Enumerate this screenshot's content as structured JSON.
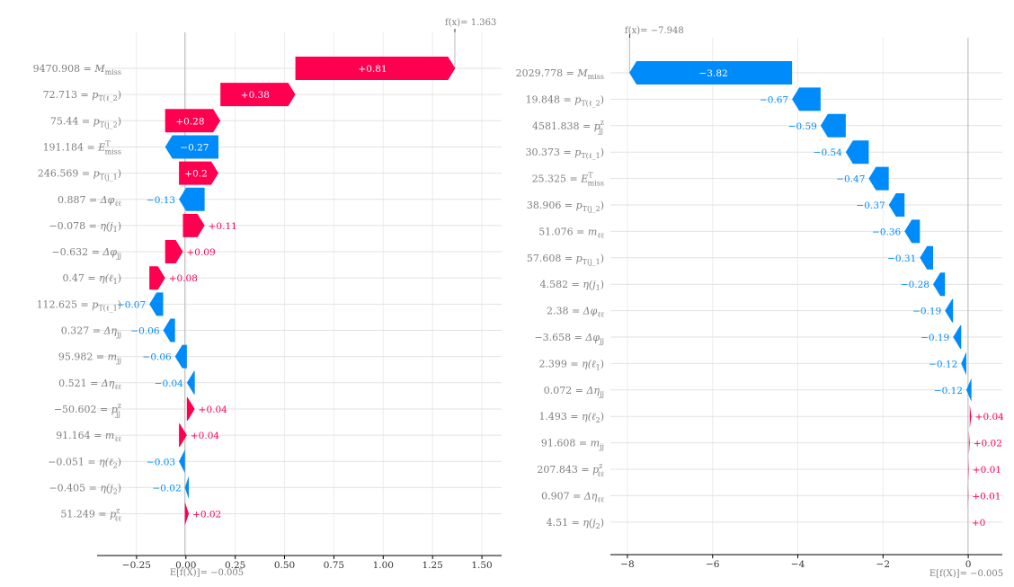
{
  "chart_data": [
    {
      "type": "waterfall",
      "base_value_label": "E[f(X)]= −0.005",
      "output_label": "f(x)= 1.363",
      "base_value": -0.005,
      "output_value": 1.363,
      "xlim": [
        -0.45,
        1.6
      ],
      "xticks": [
        -0.25,
        0.0,
        0.25,
        0.5,
        0.75,
        1.0,
        1.25,
        1.5
      ],
      "xtick_labels": [
        "−0.25",
        "0.00",
        "0.25",
        "0.50",
        "0.75",
        "1.00",
        "1.25",
        "1.50"
      ],
      "colors": {
        "positive": "#ff0051",
        "negative": "#008bfb"
      },
      "features": [
        {
          "value": "9470.908",
          "name": "M_miss",
          "contribution": 0.81,
          "label": "+0.81"
        },
        {
          "value": "72.713",
          "name": "p_T(ℓ_2)",
          "contribution": 0.38,
          "label": "+0.38"
        },
        {
          "value": "75.44",
          "name": "p_T(j_2)",
          "contribution": 0.28,
          "label": "+0.28"
        },
        {
          "value": "191.184",
          "name": "E^T_miss",
          "contribution": -0.27,
          "label": "−0.27"
        },
        {
          "value": "246.569",
          "name": "p_T(j_1)",
          "contribution": 0.2,
          "label": "+0.2"
        },
        {
          "value": "0.887",
          "name": "Δφ_ℓℓ",
          "contribution": -0.13,
          "label": "−0.13"
        },
        {
          "value": "−0.078",
          "name": "η(j_1)",
          "contribution": 0.11,
          "label": "+0.11"
        },
        {
          "value": "−0.632",
          "name": "Δφ_jj",
          "contribution": 0.09,
          "label": "+0.09"
        },
        {
          "value": "0.47",
          "name": "η(ℓ_1)",
          "contribution": 0.08,
          "label": "+0.08"
        },
        {
          "value": "112.625",
          "name": "p_T(ℓ_1)",
          "contribution": -0.07,
          "label": "−0.07"
        },
        {
          "value": "0.327",
          "name": "Δη_jj",
          "contribution": -0.06,
          "label": "−0.06"
        },
        {
          "value": "95.982",
          "name": "m_jj",
          "contribution": -0.06,
          "label": "−0.06"
        },
        {
          "value": "0.521",
          "name": "Δη_ℓℓ",
          "contribution": -0.04,
          "label": "−0.04"
        },
        {
          "value": "−50.602",
          "name": "p^z_jj",
          "contribution": 0.04,
          "label": "+0.04"
        },
        {
          "value": "91.164",
          "name": "m_ℓℓ",
          "contribution": 0.04,
          "label": "+0.04"
        },
        {
          "value": "−0.051",
          "name": "η(ℓ_2)",
          "contribution": -0.03,
          "label": "−0.03"
        },
        {
          "value": "−0.405",
          "name": "η(j_2)",
          "contribution": -0.02,
          "label": "−0.02"
        },
        {
          "value": "51.249",
          "name": "p^z_ℓℓ",
          "contribution": 0.02,
          "label": "+0.02"
        }
      ]
    },
    {
      "type": "waterfall",
      "base_value_label": "E[f(X)]= −0.005",
      "output_label": "f(x)= −7.948",
      "base_value": -0.005,
      "output_value": -7.948,
      "xlim": [
        -8.4,
        0.8
      ],
      "xticks": [
        -8,
        -6,
        -4,
        -2,
        0
      ],
      "xtick_labels": [
        "−8",
        "−6",
        "−4",
        "−2",
        "0"
      ],
      "colors": {
        "positive": "#ff0051",
        "negative": "#008bfb"
      },
      "features": [
        {
          "value": "2029.778",
          "name": "M_miss",
          "contribution": -3.82,
          "label": "−3.82"
        },
        {
          "value": "19.848",
          "name": "p_T(ℓ_2)",
          "contribution": -0.67,
          "label": "−0.67"
        },
        {
          "value": "4581.838",
          "name": "p^z_jj",
          "contribution": -0.59,
          "label": "−0.59"
        },
        {
          "value": "30.373",
          "name": "p_T(ℓ_1)",
          "contribution": -0.54,
          "label": "−0.54"
        },
        {
          "value": "25.325",
          "name": "E^T_miss",
          "contribution": -0.47,
          "label": "−0.47"
        },
        {
          "value": "38.906",
          "name": "p_T(j_2)",
          "contribution": -0.37,
          "label": "−0.37"
        },
        {
          "value": "51.076",
          "name": "m_ℓℓ",
          "contribution": -0.36,
          "label": "−0.36"
        },
        {
          "value": "57.608",
          "name": "p_T(j_1)",
          "contribution": -0.31,
          "label": "−0.31"
        },
        {
          "value": "4.582",
          "name": "η(j_1)",
          "contribution": -0.28,
          "label": "−0.28"
        },
        {
          "value": "2.38",
          "name": "Δφ_ℓℓ",
          "contribution": -0.19,
          "label": "−0.19"
        },
        {
          "value": "−3.658",
          "name": "Δφ_jj",
          "contribution": -0.19,
          "label": "−0.19"
        },
        {
          "value": "2.399",
          "name": "η(ℓ_1)",
          "contribution": -0.12,
          "label": "−0.12"
        },
        {
          "value": "0.072",
          "name": "Δη_jj",
          "contribution": -0.12,
          "label": "−0.12"
        },
        {
          "value": "1.493",
          "name": "η(ℓ_2)",
          "contribution": 0.04,
          "label": "+0.04"
        },
        {
          "value": "91.608",
          "name": "m_jj",
          "contribution": 0.02,
          "label": "+0.02"
        },
        {
          "value": "207.843",
          "name": "p^z_ℓℓ",
          "contribution": 0.01,
          "label": "+0.01"
        },
        {
          "value": "0.907",
          "name": "Δη_ℓℓ",
          "contribution": 0.01,
          "label": "+0.01"
        },
        {
          "value": "4.51",
          "name": "η(j_2)",
          "contribution": 0.0,
          "label": "+0"
        }
      ]
    }
  ]
}
